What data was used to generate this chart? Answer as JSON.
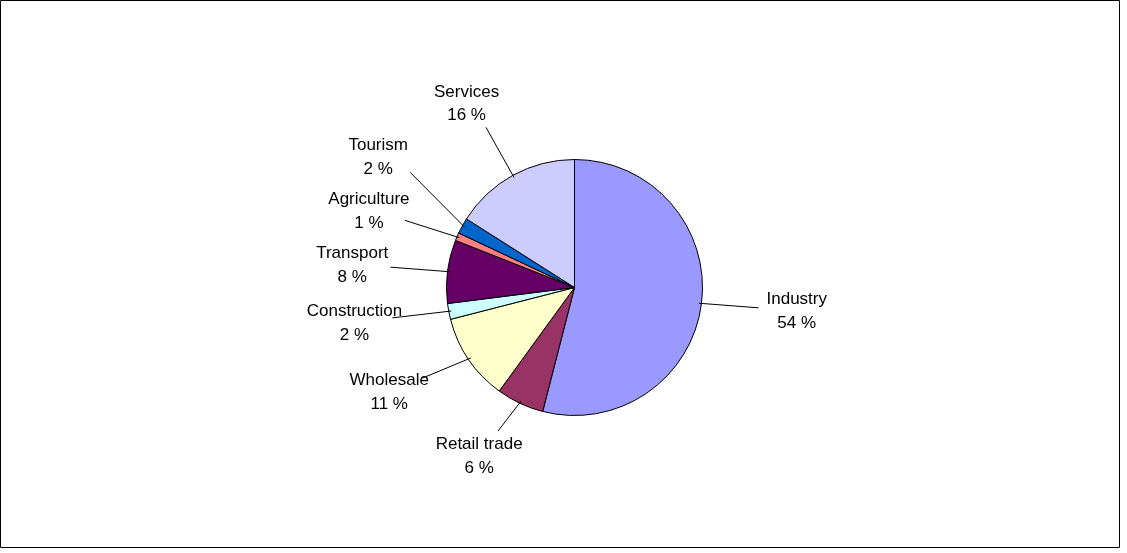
{
  "chart_data": {
    "type": "pie",
    "categories": [
      "Industry",
      "Retail trade",
      "Wholesale",
      "Construction",
      "Transport",
      "Agriculture",
      "Tourism",
      "Services"
    ],
    "values": [
      54,
      6,
      11,
      2,
      8,
      1,
      2,
      16
    ],
    "value_labels": [
      "54 %",
      "6 %",
      "11 %",
      "2 %",
      "8 %",
      "1 %",
      "2 %",
      "16 %"
    ],
    "colors": [
      "#9999ff",
      "#993366",
      "#ffffcc",
      "#ccffff",
      "#660066",
      "#ff8080",
      "#0066cc",
      "#ccccff"
    ],
    "legend": false
  }
}
